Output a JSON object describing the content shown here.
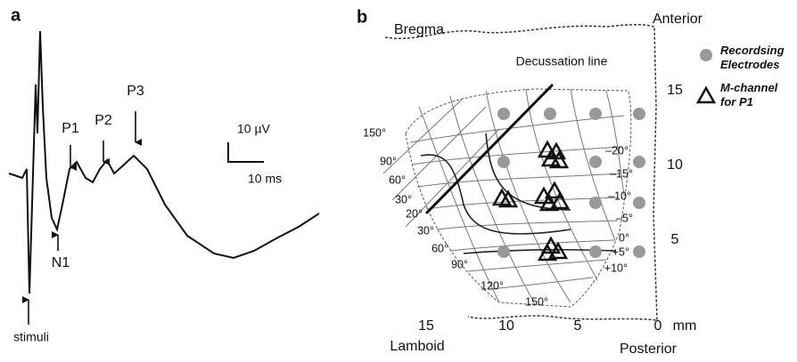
{
  "panel_a": {
    "label": "a",
    "peaks": [
      "N1",
      "P1",
      "P2",
      "P3"
    ],
    "stimulus": "stimuli",
    "scale": {
      "amplitude": "10 µV",
      "time": "10 ms"
    }
  },
  "panel_b": {
    "label": "b",
    "corners": {
      "top_left": "Bregma",
      "top_right": "Anterior",
      "bottom_left": "Lamboid",
      "bottom_right": "Posterior"
    },
    "decussation": "Decussation line",
    "legend": [
      {
        "lines": [
          "Recordsing",
          "Electrodes"
        ]
      },
      {
        "lines": [
          "M-channel",
          "for P1"
        ]
      }
    ],
    "right_axis": [
      "15",
      "10",
      "5"
    ],
    "bottom_axis": [
      "15",
      "10",
      "5",
      "0"
    ],
    "unit": "mm",
    "left_angles": [
      "150°",
      "90°",
      "60°",
      "30°",
      "20°",
      "30°",
      "60°",
      "90°",
      "120°",
      "150°"
    ],
    "right_angles": [
      "–20°",
      "–15°",
      "–10°",
      "–5°",
      "0°",
      "+5°",
      "+10°"
    ]
  }
}
